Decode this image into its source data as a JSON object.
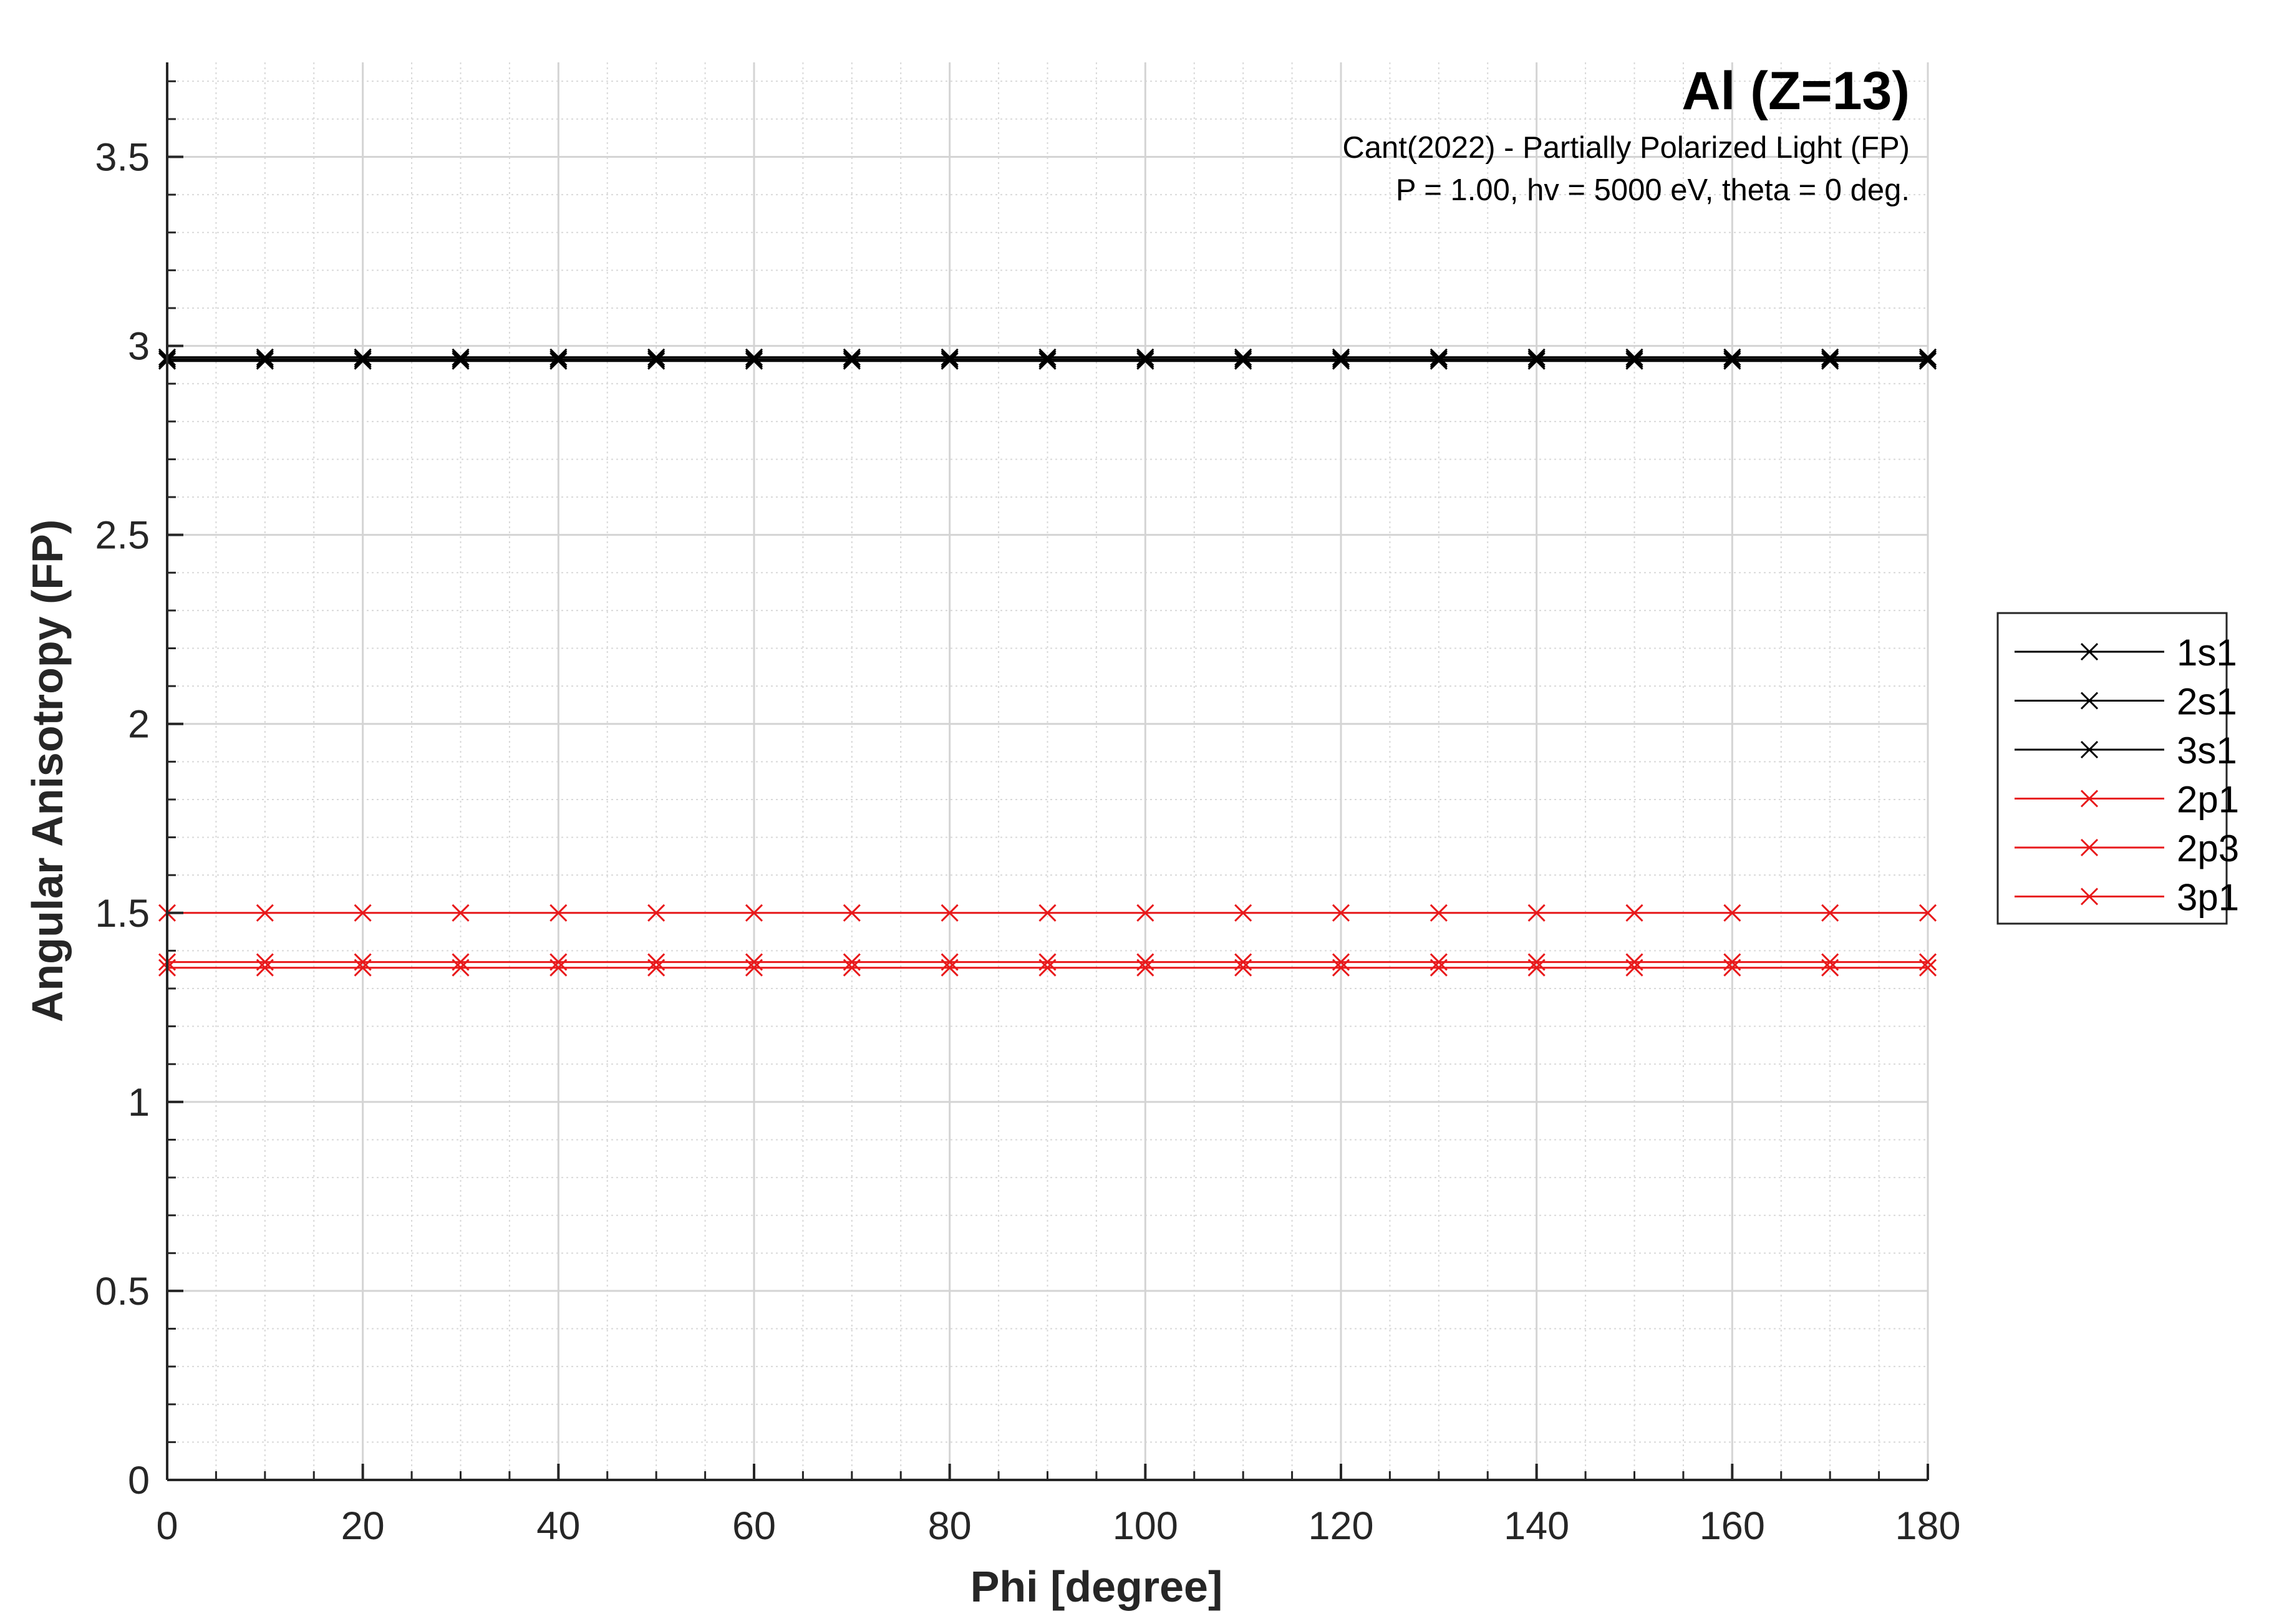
{
  "chart_data": {
    "type": "line",
    "title": "Al (Z=13)",
    "subtitle_lines": [
      "Cant(2022) - Partially Polarized Light (FP)",
      "P = 1.00, hv = 5000 eV, theta = 0 deg."
    ],
    "xlabel": "Phi [degree]",
    "ylabel": "Angular Anisotropy (FP)",
    "xlim": [
      0,
      180
    ],
    "ylim": [
      0,
      3.75
    ],
    "xticks": [
      0,
      20,
      40,
      60,
      80,
      100,
      120,
      140,
      160,
      180
    ],
    "yticks": [
      0,
      0.5,
      1,
      1.5,
      2,
      2.5,
      3,
      3.5
    ],
    "grid": true,
    "minor_grid": true,
    "legend_position": "right-middle",
    "x": [
      0,
      10,
      20,
      30,
      40,
      50,
      60,
      70,
      80,
      90,
      100,
      110,
      120,
      130,
      140,
      150,
      160,
      170,
      180
    ],
    "series": [
      {
        "name": "1s1",
        "value": 2.97,
        "color": "#000000",
        "marker": "x"
      },
      {
        "name": "2s1",
        "value": 2.965,
        "color": "#000000",
        "marker": "x"
      },
      {
        "name": "3s1",
        "value": 2.96,
        "color": "#000000",
        "marker": "x"
      },
      {
        "name": "2p1",
        "value": 1.37,
        "color": "#e8191b",
        "marker": "x"
      },
      {
        "name": "2p3",
        "value": 1.355,
        "color": "#e8191b",
        "marker": "x"
      },
      {
        "name": "3p1",
        "value": 1.5,
        "color": "#e8191b",
        "marker": "x"
      }
    ]
  }
}
